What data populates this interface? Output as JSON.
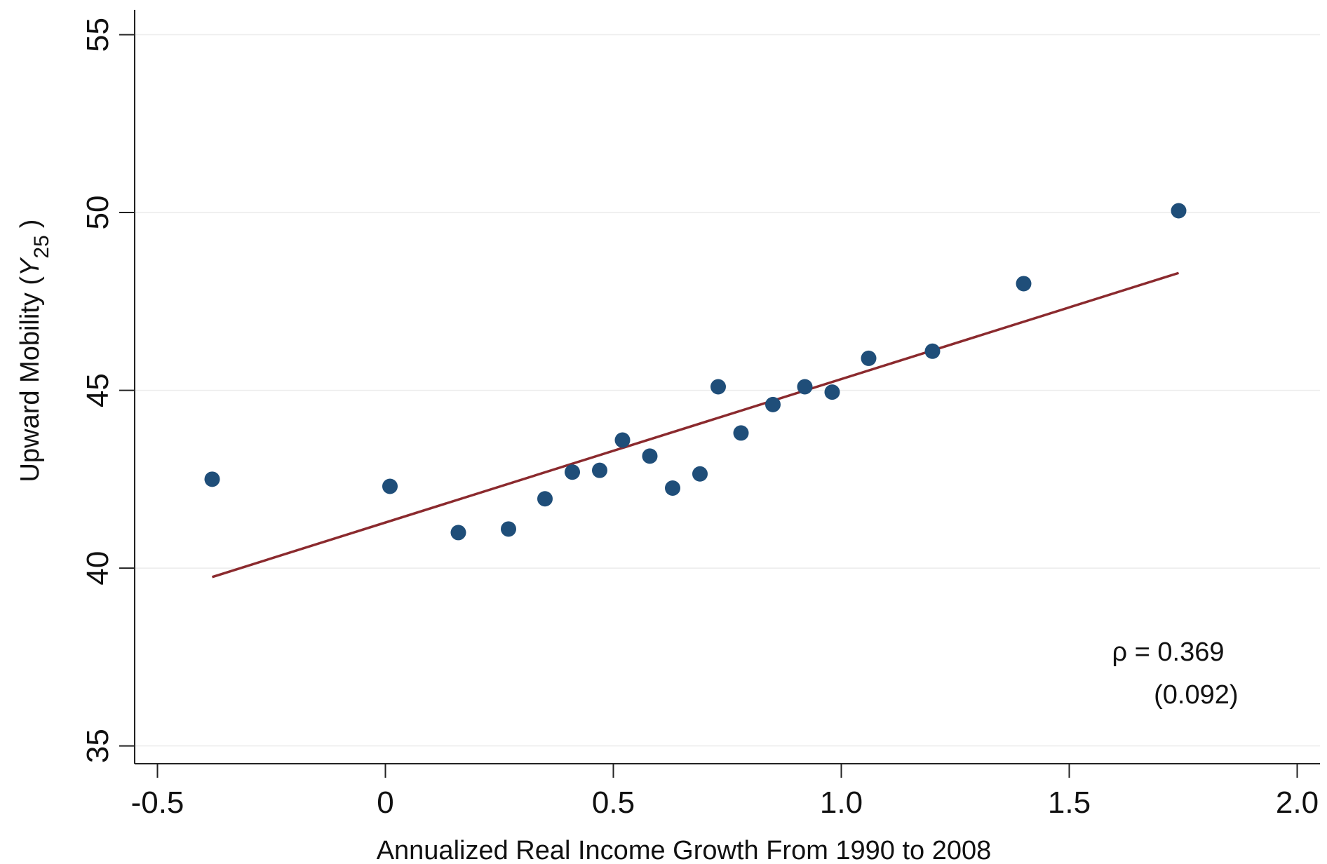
{
  "chart_data": {
    "type": "scatter",
    "xlabel": "Annualized Real Income Growth From 1990 to 2008",
    "ylabel": {
      "prefix": "Upward Mobility (",
      "var": "Y",
      "sub": "25",
      "suffix": ")"
    },
    "xlim": [
      -0.55,
      2.05
    ],
    "ylim": [
      34.5,
      55.7
    ],
    "xticks": [
      -0.5,
      0,
      0.5,
      1.0,
      1.5,
      2.0
    ],
    "xtick_labels": [
      "-0.5",
      "0",
      "0.5",
      "1.0",
      "1.5",
      "2.0"
    ],
    "yticks": [
      35,
      40,
      45,
      50,
      55
    ],
    "ytick_labels": [
      "35",
      "40",
      "45",
      "50",
      "55"
    ],
    "grid": "horizontal",
    "series": [
      {
        "marker_color": "#1f4e79",
        "points": [
          {
            "x": -0.38,
            "y": 42.5
          },
          {
            "x": 0.01,
            "y": 42.3
          },
          {
            "x": 0.16,
            "y": 41.0
          },
          {
            "x": 0.27,
            "y": 41.1
          },
          {
            "x": 0.35,
            "y": 41.95
          },
          {
            "x": 0.41,
            "y": 42.7
          },
          {
            "x": 0.47,
            "y": 42.75
          },
          {
            "x": 0.52,
            "y": 43.6
          },
          {
            "x": 0.58,
            "y": 43.15
          },
          {
            "x": 0.63,
            "y": 42.25
          },
          {
            "x": 0.69,
            "y": 42.65
          },
          {
            "x": 0.73,
            "y": 45.1
          },
          {
            "x": 0.78,
            "y": 43.8
          },
          {
            "x": 0.85,
            "y": 44.6
          },
          {
            "x": 0.92,
            "y": 45.1
          },
          {
            "x": 0.98,
            "y": 44.95
          },
          {
            "x": 1.06,
            "y": 45.9
          },
          {
            "x": 1.2,
            "y": 46.1
          },
          {
            "x": 1.4,
            "y": 48.0
          },
          {
            "x": 1.74,
            "y": 50.05
          }
        ]
      }
    ],
    "fit_line": {
      "color": "#8b2a2e",
      "x": [
        -0.38,
        1.74
      ],
      "y": [
        39.75,
        48.3
      ]
    },
    "annotation": {
      "rho": "ρ = 0.369",
      "se": "(0.092)",
      "x": 1.84,
      "y_rho": 37.4,
      "y_se": 36.2
    }
  }
}
